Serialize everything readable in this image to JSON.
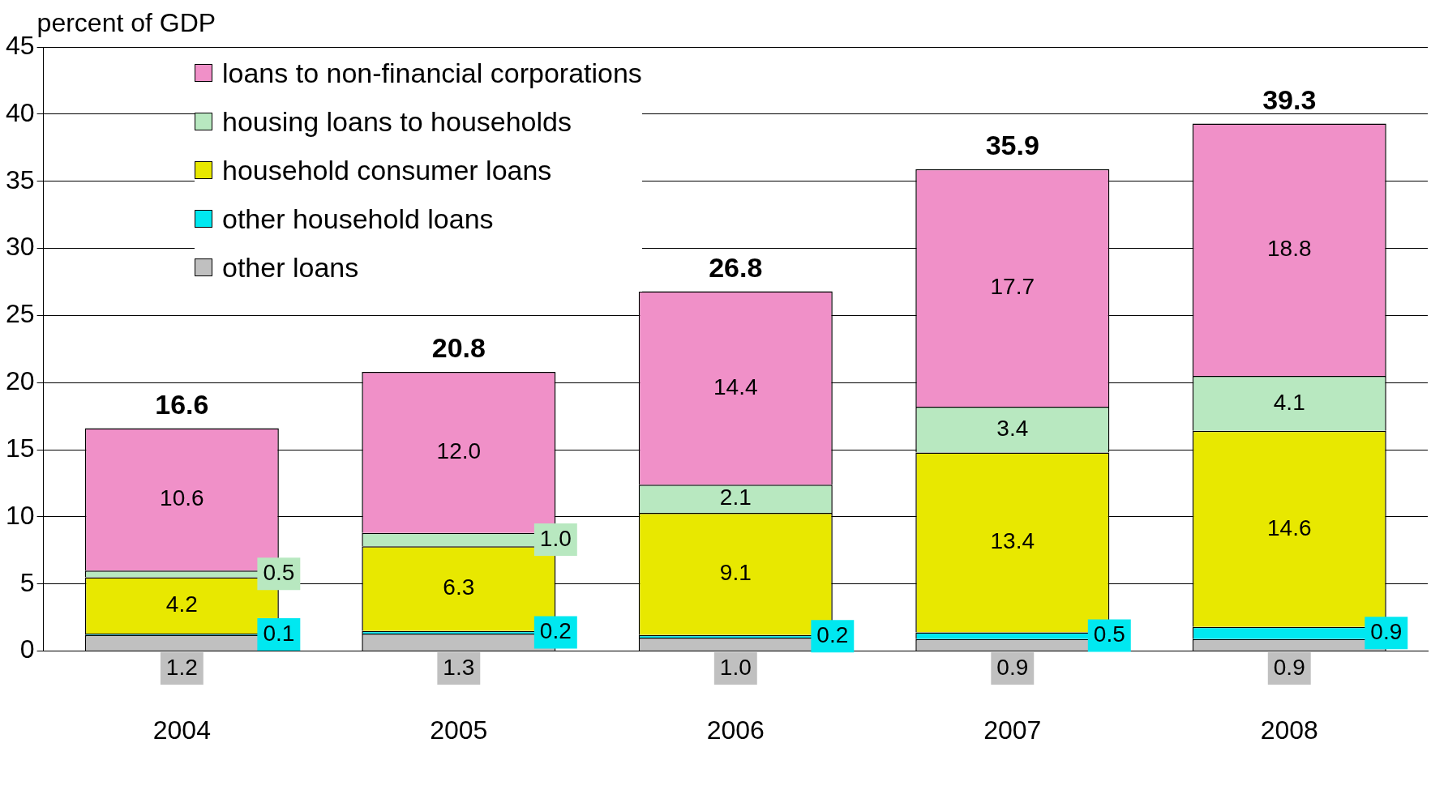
{
  "chart_data": {
    "type": "bar",
    "stacked": true,
    "ylabel": "percent of GDP",
    "categories": [
      "2004",
      "2005",
      "2006",
      "2007",
      "2008"
    ],
    "series": [
      {
        "name": "other loans",
        "color": "#c0c0c0",
        "values": [
          1.2,
          1.3,
          1.0,
          0.9,
          0.9
        ],
        "value_labels": [
          "1.2",
          "1.3",
          "1.0",
          "0.9",
          "0.9"
        ]
      },
      {
        "name": "other household loans",
        "color": "#00e8f0",
        "values": [
          0.1,
          0.2,
          0.2,
          0.5,
          0.9
        ],
        "value_labels": [
          "0.1",
          "0.2",
          "0.2",
          "0.5",
          "0.9"
        ]
      },
      {
        "name": "household consumer loans",
        "color": "#e8e800",
        "values": [
          4.2,
          6.3,
          9.1,
          13.4,
          14.6
        ],
        "value_labels": [
          "4.2",
          "6.3",
          "9.1",
          "13.4",
          "14.6"
        ]
      },
      {
        "name": "housing loans to households",
        "color": "#b8e8c0",
        "values": [
          0.5,
          1.0,
          2.1,
          3.4,
          4.1
        ],
        "value_labels": [
          "0.5",
          "1.0",
          "2.1",
          "3.4",
          "4.1"
        ]
      },
      {
        "name": "loans to non-financial corporations",
        "color": "#f090c8",
        "values": [
          10.6,
          12.0,
          14.4,
          17.7,
          18.8
        ],
        "value_labels": [
          "10.6",
          "12.0",
          "14.4",
          "17.7",
          "18.8"
        ]
      }
    ],
    "totals": [
      "16.6",
      "20.8",
      "26.8",
      "35.9",
      "39.3"
    ],
    "ylim": [
      0,
      45
    ],
    "yticks": [
      0,
      5,
      10,
      15,
      20,
      25,
      30,
      35,
      40,
      45
    ],
    "grid": "y",
    "legend": "top left"
  }
}
